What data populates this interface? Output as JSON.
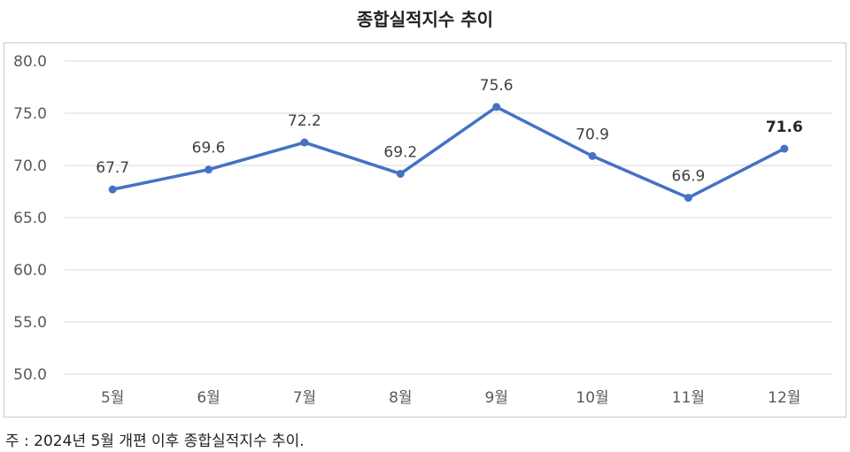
{
  "chart_data": {
    "type": "line",
    "title": "종합실적지수  추이",
    "categories": [
      "5월",
      "6월",
      "7월",
      "8월",
      "9월",
      "10월",
      "11월",
      "12월"
    ],
    "series": [
      {
        "values": [
          67.7,
          69.6,
          72.2,
          69.2,
          75.6,
          70.9,
          66.9,
          71.6
        ]
      }
    ],
    "ylim": [
      50,
      80
    ],
    "yticks": [
      "50.0",
      "55.0",
      "60.0",
      "65.0",
      "70.0",
      "75.0",
      "80.0"
    ],
    "grid": true,
    "legend": "none",
    "colors": {
      "line": "#4472c4",
      "grid": "#d9d9d9"
    }
  },
  "footnote": "주 : 2024년 5월 개편 이후 종합실적지수 추이."
}
